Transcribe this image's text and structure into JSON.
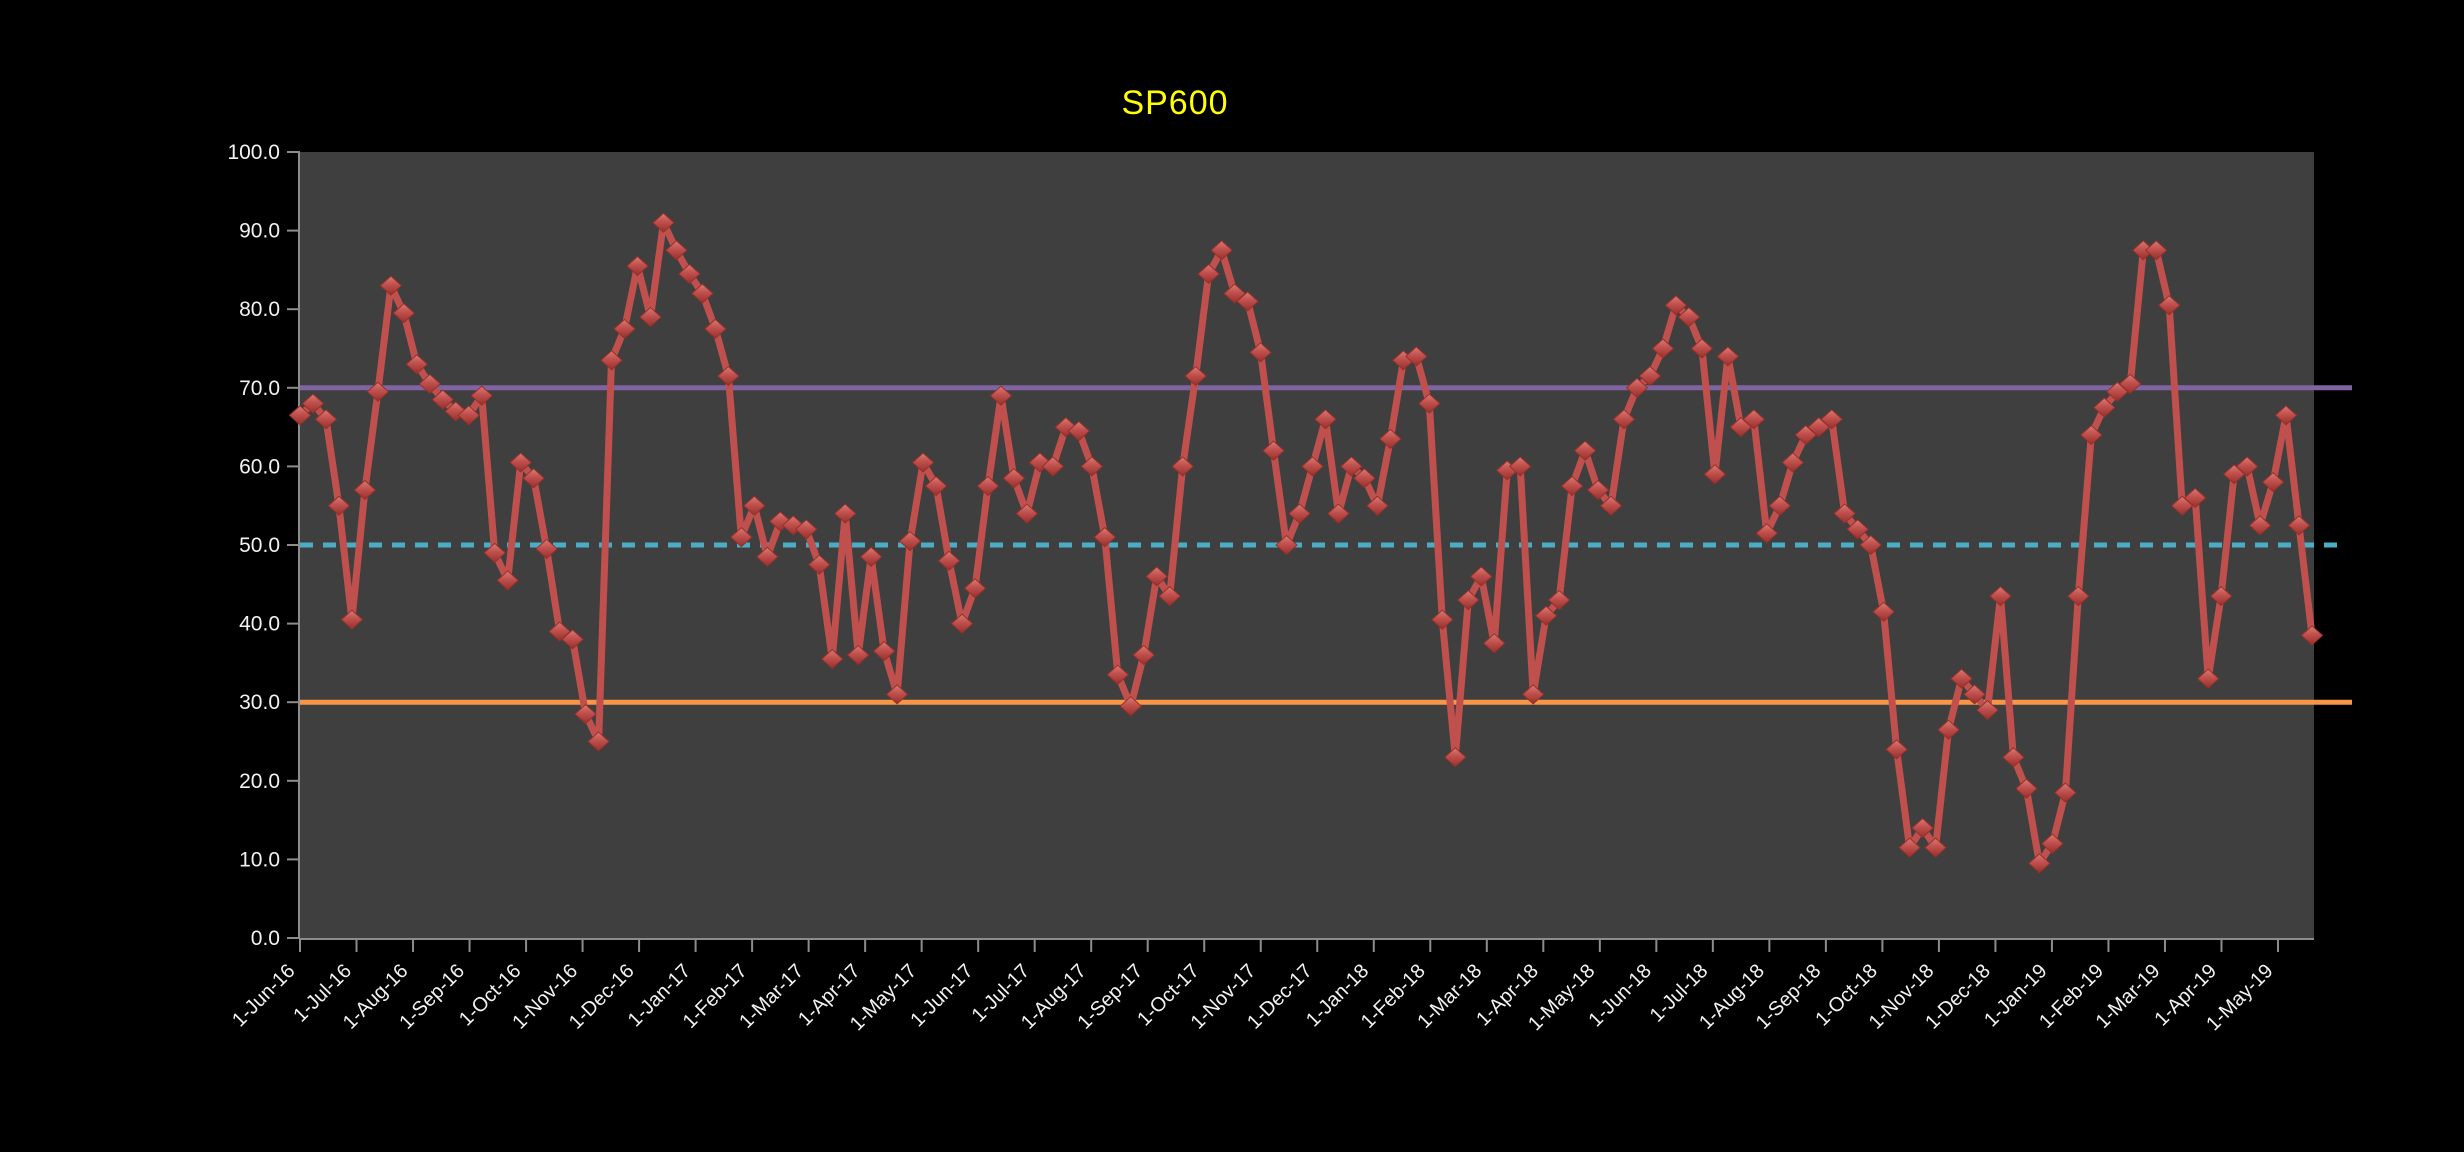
{
  "window": {
    "background": "#000000"
  },
  "chart": {
    "title": "SP600",
    "title_color": "#FFFF00",
    "plot_bg": "#3F3F3F",
    "axis_color": "#8C8C8C",
    "tick_color": "#8C8C8C",
    "label_color": "#F2F2F2",
    "series_color": "#C0504D",
    "marker_fill_top": "#D97B72",
    "marker_fill_bottom": "#96302B",
    "ref_line_70_color": "#8064A2",
    "ref_line_50_color": "#4BACC6",
    "ref_line_30_color": "#F79646"
  },
  "chart_data": {
    "type": "line",
    "title": "SP600",
    "xlabel": "",
    "ylabel": "",
    "ylim": [
      0,
      100
    ],
    "grid": "off",
    "legend": "none",
    "x_interval": "weekly",
    "x_first_point": "1-Jun-16",
    "x_last_point": "21-May-19",
    "y_tick_labels": [
      "100.0",
      "90.0",
      "80.0",
      "70.0",
      "60.0",
      "50.0",
      "40.0",
      "30.0",
      "20.0",
      "10.0",
      "0.0"
    ],
    "x_tick_labels": [
      "1-Jun-16",
      "1-Jul-16",
      "1-Aug-16",
      "1-Sep-16",
      "1-Oct-16",
      "1-Nov-16",
      "1-Dec-16",
      "1-Jan-17",
      "1-Feb-17",
      "1-Mar-17",
      "1-Apr-17",
      "1-May-17",
      "1-Jun-17",
      "1-Jul-17",
      "1-Aug-17",
      "1-Sep-17",
      "1-Oct-17",
      "1-Nov-17",
      "1-Dec-17",
      "1-Jan-18",
      "1-Feb-18",
      "1-Mar-18",
      "1-Apr-18",
      "1-May-18",
      "1-Jun-18",
      "1-Jul-18",
      "1-Aug-18",
      "1-Sep-18",
      "1-Oct-18",
      "1-Nov-18",
      "1-Dec-18",
      "1-Jan-19",
      "1-Feb-19",
      "1-Mar-19",
      "1-Apr-19",
      "1-May-19"
    ],
    "reference_lines": [
      {
        "value": 70,
        "style": "solid",
        "color": "#8064A2"
      },
      {
        "value": 50,
        "style": "dotted",
        "color": "#4BACC6"
      },
      {
        "value": 30,
        "style": "solid",
        "color": "#F79646"
      }
    ],
    "series": [
      {
        "name": "SP600",
        "values": [
          66.5,
          68,
          66,
          55,
          40.5,
          57,
          69.5,
          83,
          79.5,
          73,
          70.5,
          68.5,
          67,
          66.5,
          69,
          49,
          45.5,
          60.5,
          58.5,
          49.5,
          39,
          38,
          28.5,
          25,
          73.5,
          77.5,
          85.5,
          79,
          91,
          87.5,
          84.5,
          82,
          77.5,
          71.5,
          51,
          55,
          48.5,
          53,
          52.5,
          52,
          47.5,
          35.5,
          54,
          36,
          48.5,
          36.5,
          31,
          50.5,
          60.5,
          57.5,
          48,
          40,
          44.5,
          57.5,
          69,
          58.5,
          54,
          60.5,
          60,
          65,
          64.5,
          60,
          51,
          33.5,
          29.5,
          36,
          46,
          43.5,
          60,
          71.5,
          84.5,
          87.5,
          82,
          81,
          74.5,
          62,
          50,
          54,
          60,
          66,
          54,
          60,
          58.5,
          55,
          63.5,
          73.5,
          74,
          68,
          40.5,
          23,
          43,
          46,
          37.5,
          59.5,
          60,
          31,
          41,
          43,
          57.5,
          62,
          57,
          55,
          66,
          70,
          71.5,
          75,
          80.5,
          79,
          75,
          59,
          74,
          65,
          66,
          51.5,
          55,
          60.5,
          64,
          65,
          66,
          54,
          52,
          50,
          41.5,
          24,
          11.5,
          14,
          11.5,
          26.5,
          33,
          31,
          29,
          43.5,
          23,
          19,
          9.5,
          12,
          18.5,
          43.5,
          64,
          67.5,
          69.5,
          70.5,
          87.5,
          87.5,
          80.5,
          55,
          56,
          33,
          43.5,
          59,
          60,
          52.5,
          58,
          66.5,
          52.5,
          38.5
        ]
      }
    ]
  }
}
